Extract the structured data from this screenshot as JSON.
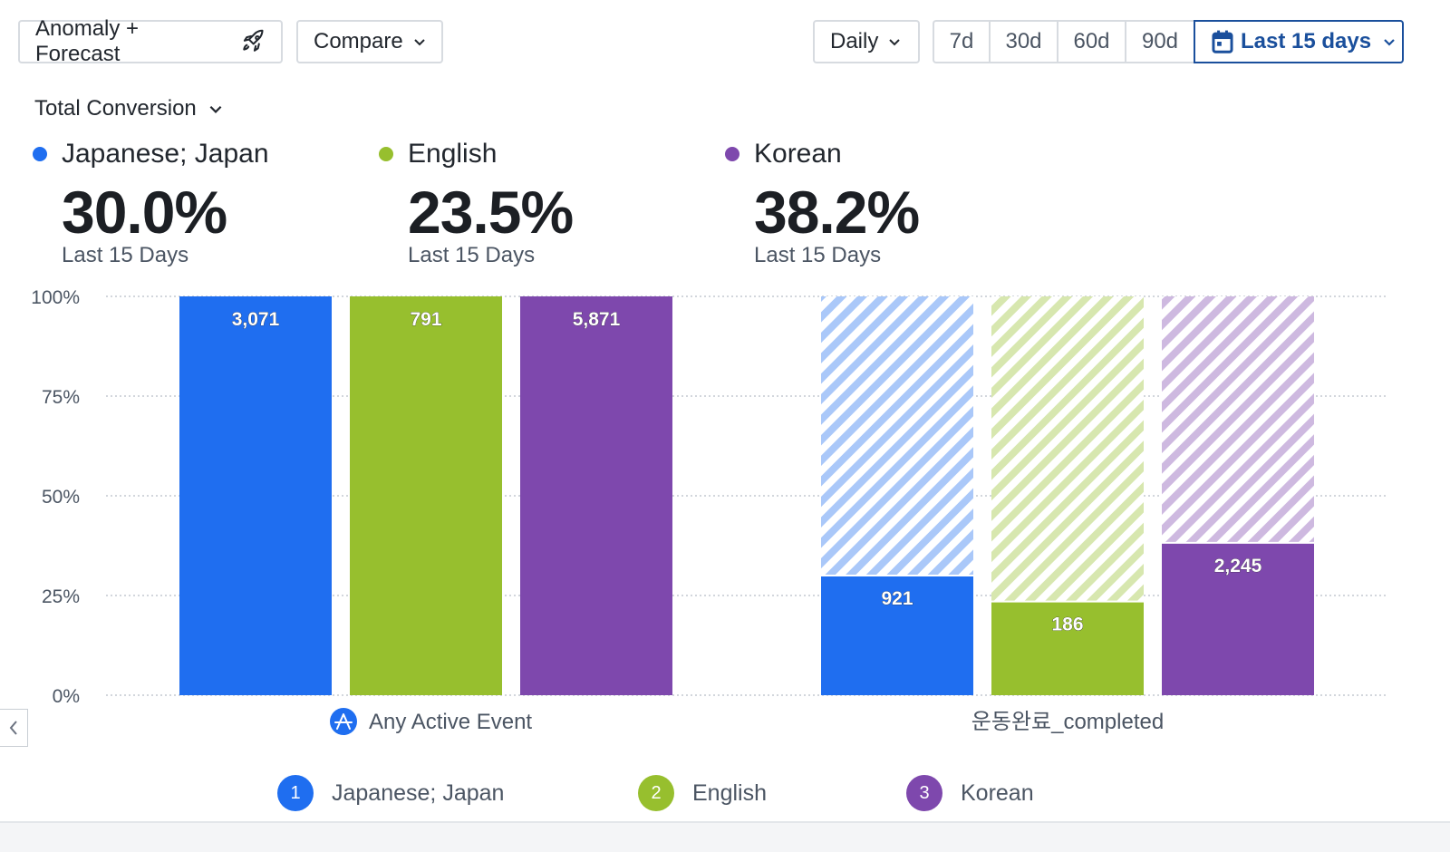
{
  "toolbar": {
    "anomaly_label": "Anomaly + Forecast",
    "compare_label": "Compare",
    "interval_label": "Daily",
    "ranges": [
      "7d",
      "30d",
      "60d",
      "90d"
    ],
    "active_range_label": "Last 15 days"
  },
  "metric_select": {
    "label": "Total Conversion"
  },
  "stats": [
    {
      "name": "Japanese; Japan",
      "value": "30.0%",
      "sub": "Last 15 Days",
      "color": "#1f6ef0"
    },
    {
      "name": "English",
      "value": "23.5%",
      "sub": "Last 15 Days",
      "color": "#97bf2e"
    },
    {
      "name": "Korean",
      "value": "38.2%",
      "sub": "Last 15 Days",
      "color": "#7e48ad"
    }
  ],
  "chart_data": {
    "type": "bar",
    "categories": [
      "Any Active Event",
      "운동완료_completed"
    ],
    "series": [
      {
        "name": "Japanese; Japan",
        "color": "#1f6ef0",
        "values": [
          100,
          30.0
        ],
        "labels": [
          "3,071",
          "921"
        ]
      },
      {
        "name": "English",
        "color": "#97bf2e",
        "values": [
          100,
          23.5
        ],
        "labels": [
          "791",
          "186"
        ]
      },
      {
        "name": "Korean",
        "color": "#7e48ad",
        "values": [
          100,
          38.2
        ],
        "labels": [
          "5,871",
          "2,245"
        ]
      }
    ],
    "y_ticks": [
      "0%",
      "25%",
      "50%",
      "75%",
      "100%"
    ],
    "ylim": [
      0,
      100
    ],
    "grid": true,
    "dropoff_hatched": true,
    "xlabel": "",
    "ylabel": ""
  },
  "legend": [
    {
      "num": "1",
      "name": "Japanese; Japan"
    },
    {
      "num": "2",
      "name": "English"
    },
    {
      "num": "3",
      "name": "Korean"
    }
  ]
}
